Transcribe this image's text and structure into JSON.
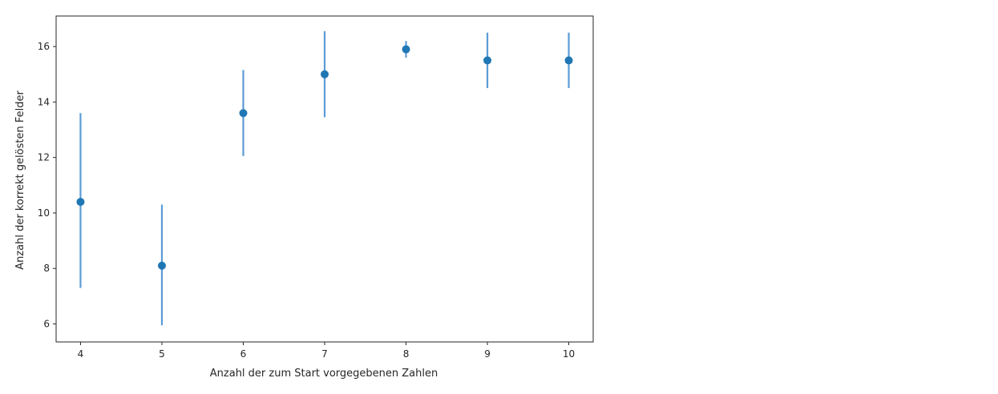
{
  "chart_data": {
    "type": "scatter",
    "title": "",
    "xlabel": "Anzahl der zum Start vorgegebenen Zahlen",
    "ylabel": "Anzahl der korrekt gelösten Felder",
    "xlim": [
      3.7,
      10.3
    ],
    "ylim": [
      5.35,
      17.1
    ],
    "x_ticks": [
      4,
      5,
      6,
      7,
      8,
      9,
      10
    ],
    "y_ticks": [
      6,
      8,
      10,
      12,
      14,
      16
    ],
    "grid": false,
    "legend": "none",
    "colors": {
      "marker": "#1f77b4",
      "errorbar": "#5b9bd5",
      "axes": "#262626"
    },
    "points": [
      {
        "x": 4,
        "y": 10.4,
        "yerr_low": 7.3,
        "yerr_high": 13.6
      },
      {
        "x": 5,
        "y": 8.1,
        "yerr_low": 5.95,
        "yerr_high": 10.3
      },
      {
        "x": 6,
        "y": 13.6,
        "yerr_low": 12.05,
        "yerr_high": 15.15
      },
      {
        "x": 7,
        "y": 15.0,
        "yerr_low": 13.45,
        "yerr_high": 16.55
      },
      {
        "x": 8,
        "y": 15.9,
        "yerr_low": 15.6,
        "yerr_high": 16.2
      },
      {
        "x": 9,
        "y": 15.5,
        "yerr_low": 14.5,
        "yerr_high": 16.5
      },
      {
        "x": 10,
        "y": 15.5,
        "yerr_low": 14.5,
        "yerr_high": 16.5
      }
    ]
  }
}
